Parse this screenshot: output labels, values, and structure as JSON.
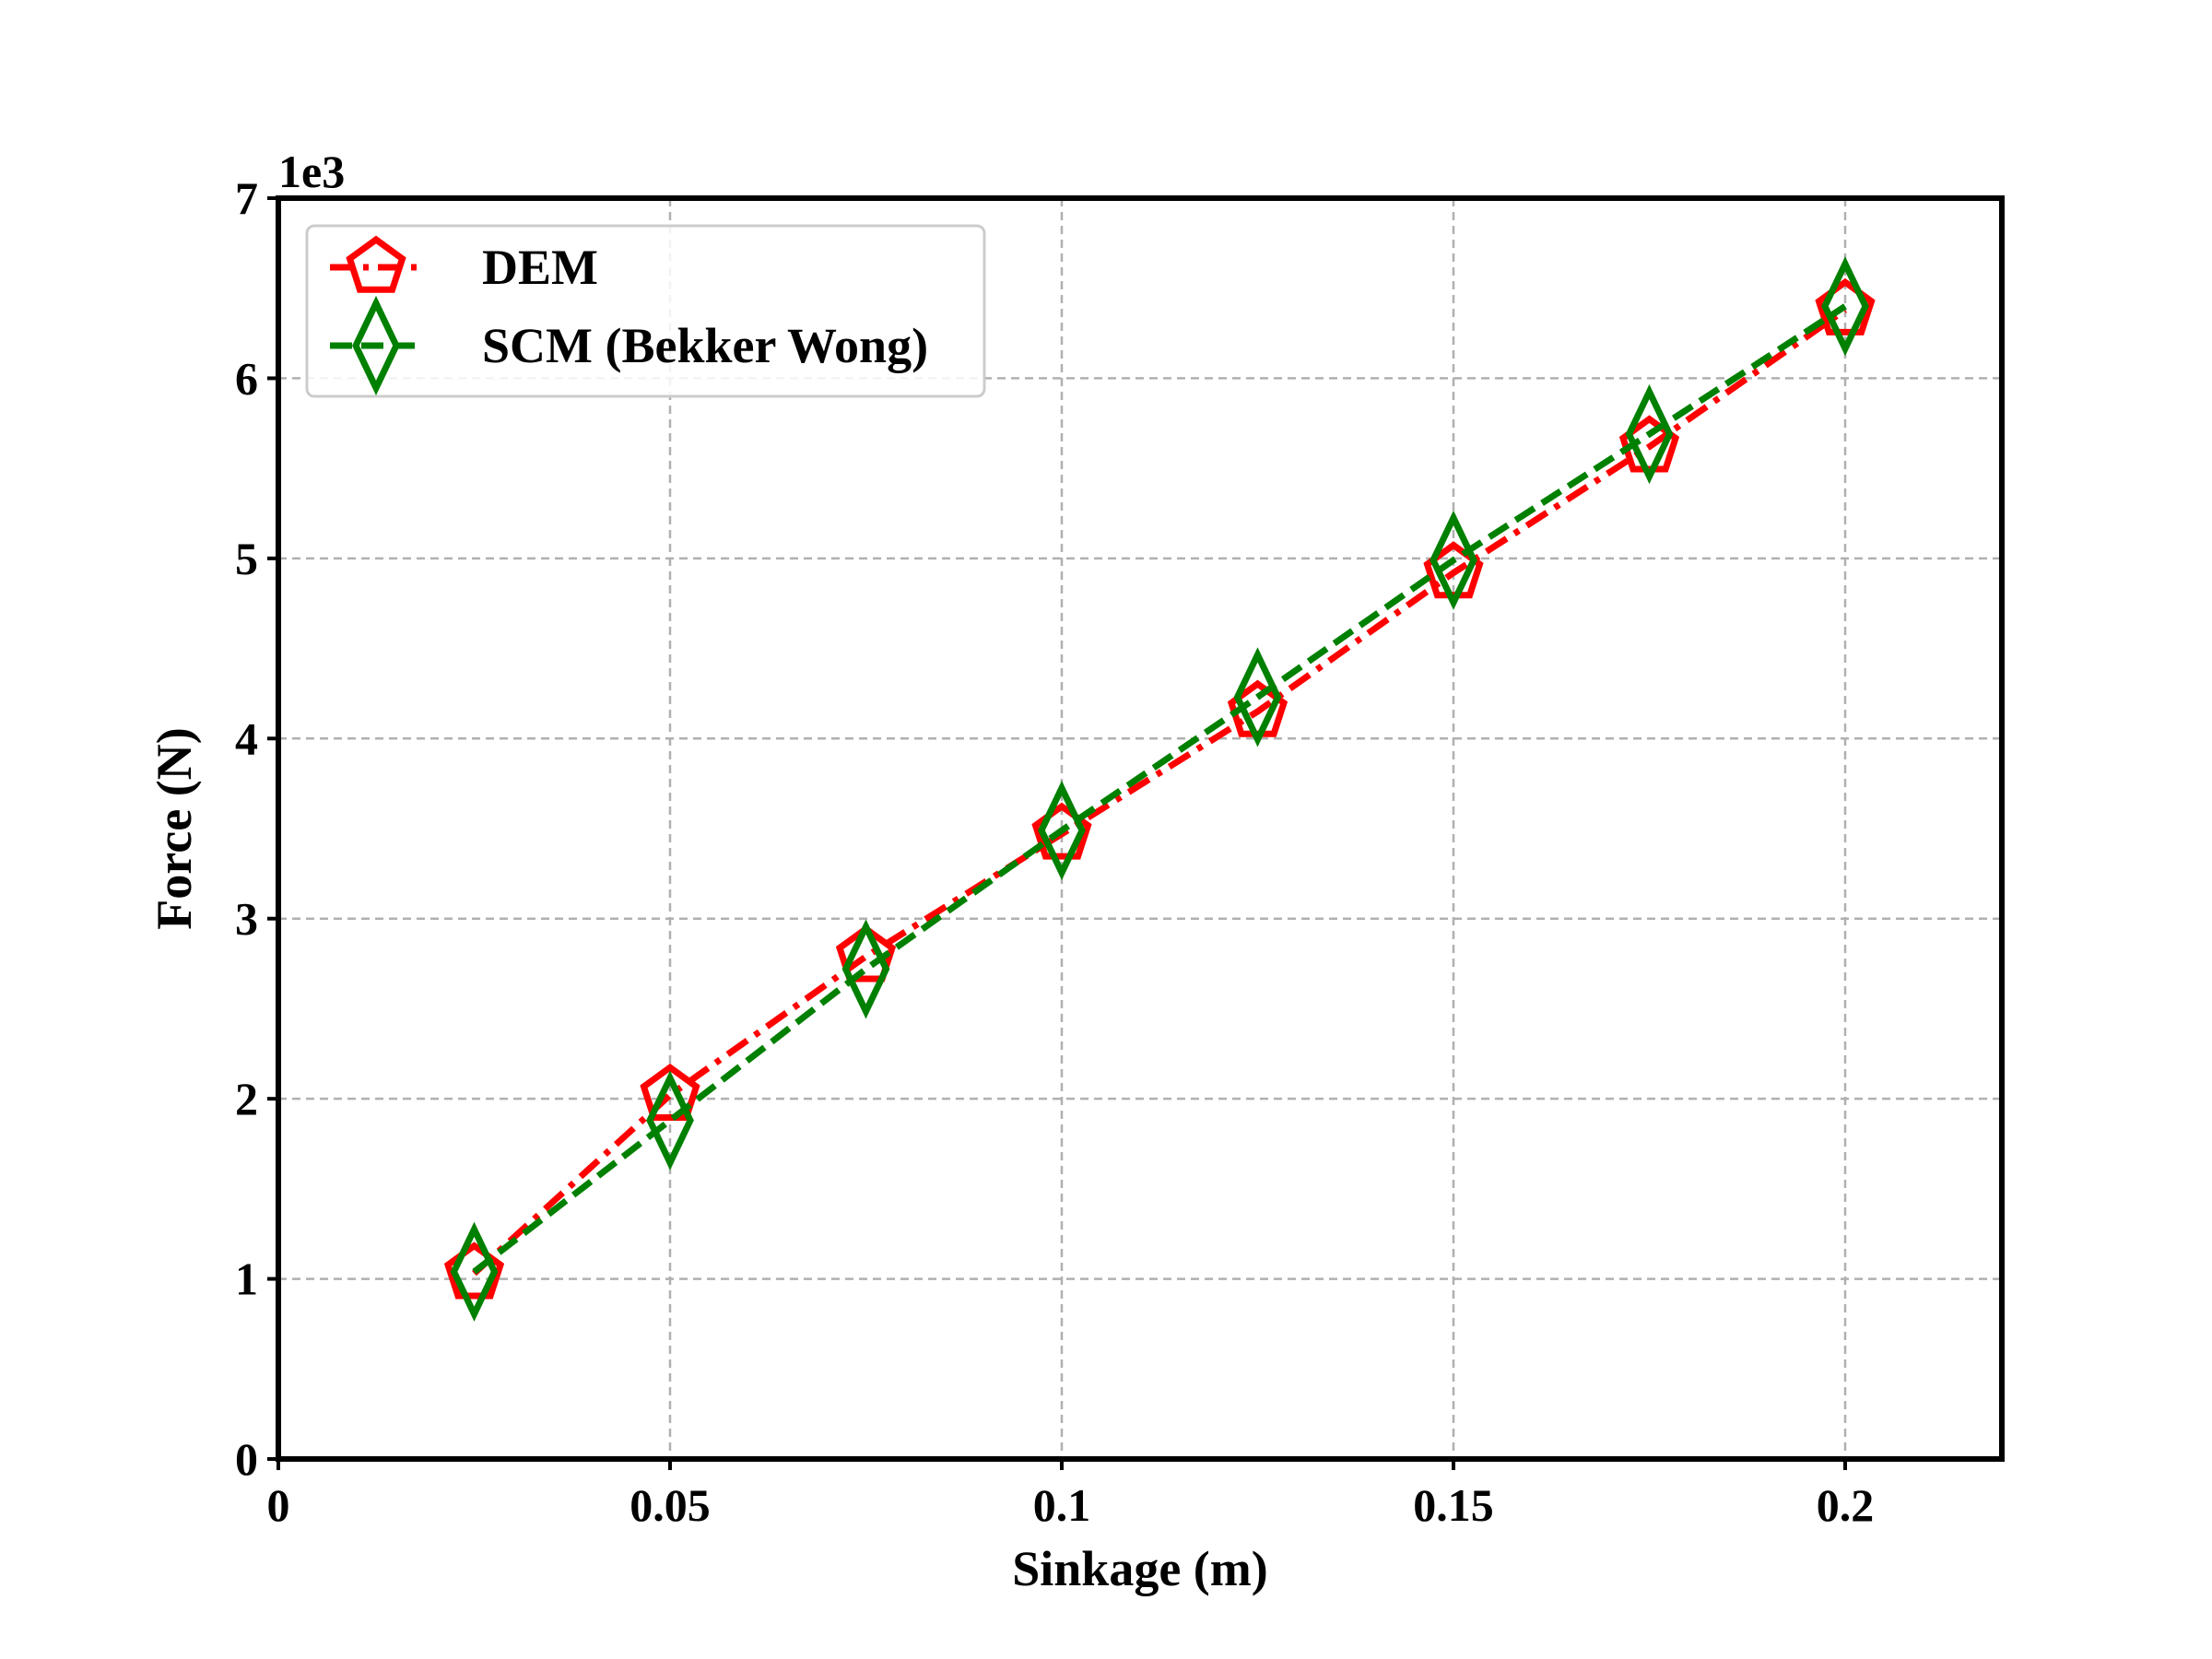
{
  "chart_data": {
    "type": "line",
    "xlabel": "Sinkage (m)",
    "ylabel": "Force (N)",
    "y_offset_label": "1e3",
    "y_multiplier": 1000,
    "xlim": [
      0,
      0.22
    ],
    "ylim": [
      0,
      7000
    ],
    "x_ticks": [
      0,
      0.05,
      0.1,
      0.15,
      0.2
    ],
    "x_tick_labels": [
      "0",
      "0.05",
      "0.1",
      "0.15",
      "0.2"
    ],
    "y_ticks": [
      0,
      1000,
      2000,
      3000,
      4000,
      5000,
      6000,
      7000
    ],
    "y_tick_labels": [
      "0",
      "1",
      "2",
      "3",
      "4",
      "5",
      "6",
      "7"
    ],
    "grid": true,
    "legend_position": "top-left",
    "x": [
      0.025,
      0.05,
      0.075,
      0.1,
      0.125,
      0.15,
      0.175,
      0.2
    ],
    "series": [
      {
        "name": "DEM",
        "color": "#ff0000",
        "line_style": "dash-dot",
        "marker": "pentagon",
        "values": [
          1030,
          2020,
          2790,
          3470,
          4150,
          4920,
          5620,
          6380
        ]
      },
      {
        "name": "SCM (Bekker Wong)",
        "color": "#008000",
        "line_style": "dashed",
        "marker": "thin-diamond",
        "values": [
          1040,
          1880,
          2720,
          3490,
          4230,
          4990,
          5690,
          6400
        ]
      }
    ]
  }
}
